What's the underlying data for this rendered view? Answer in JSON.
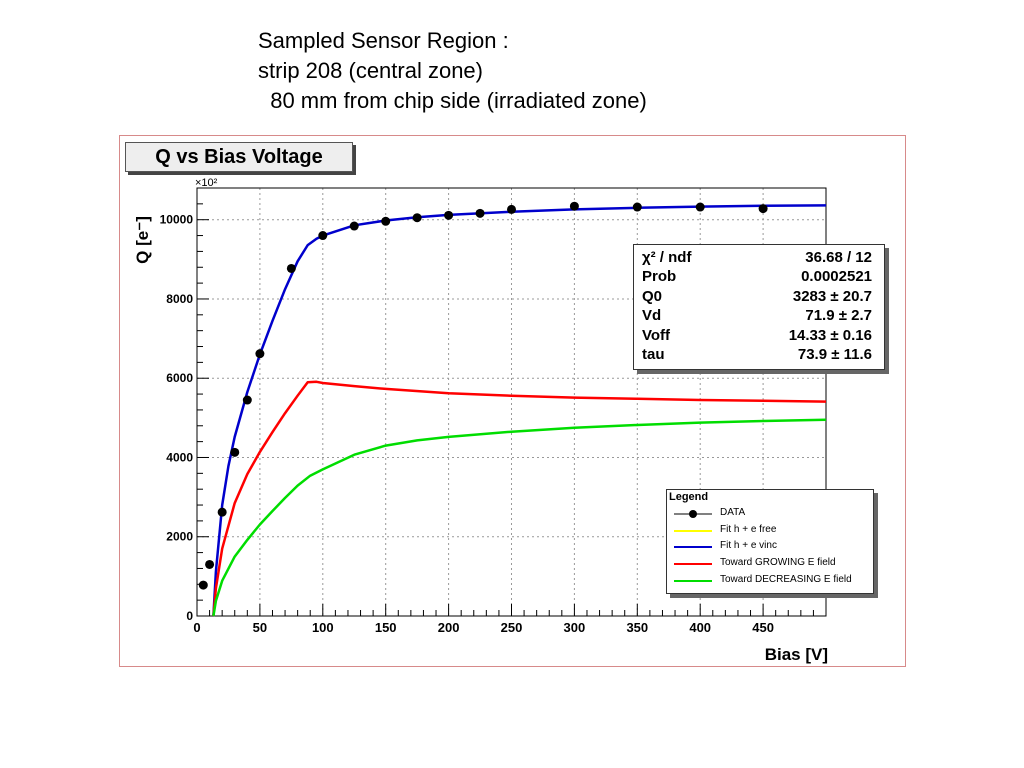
{
  "caption": {
    "line1": "Sampled Sensor Region :",
    "line2": "strip 208 (central zone)",
    "line3": "  80 mm from chip side (irradiated zone)"
  },
  "stats": [
    {
      "key": "χ² / ndf",
      "value": "36.68 / 12"
    },
    {
      "key": "Prob",
      "value": "0.0002521"
    },
    {
      "key": "Q0",
      "value": "3283 ± 20.7"
    },
    {
      "key": "Vd",
      "value": "71.9 ± 2.7"
    },
    {
      "key": "Voff",
      "value": "14.33 ± 0.16"
    },
    {
      "key": "tau",
      "value": "73.9 ± 11.6"
    }
  ],
  "legend": {
    "title": "Legend",
    "items": [
      {
        "label": "DATA",
        "color": "#000000"
      },
      {
        "label": "Fit h + e free",
        "color": "#ffff00"
      },
      {
        "label": "Fit h + e vinc",
        "color": "#0000cc"
      },
      {
        "label": "Toward GROWING E field",
        "color": "#ff0000"
      },
      {
        "label": "Toward DECREASING E field",
        "color": "#00dd00"
      }
    ]
  },
  "chart_data": {
    "type": "scatter",
    "title": "Q vs Bias Voltage",
    "xlabel": "Bias [V]",
    "ylabel": "Q [e⁻]",
    "y_multiplier": "×10²",
    "xlim": [
      0,
      500
    ],
    "ylim": [
      0,
      10800
    ],
    "x_ticks": [
      0,
      50,
      100,
      150,
      200,
      250,
      300,
      350,
      400,
      450
    ],
    "y_ticks": [
      0,
      2000,
      4000,
      6000,
      8000,
      10000
    ],
    "grid": true,
    "legend_position": "bottom-right",
    "series": [
      {
        "name": "DATA",
        "kind": "points",
        "color": "#000000",
        "x": [
          5,
          10,
          20,
          30,
          40,
          50,
          75,
          100,
          125,
          150,
          175,
          200,
          225,
          250,
          300,
          350,
          400,
          450
        ],
        "y": [
          780,
          1300,
          2620,
          4130,
          5450,
          6620,
          8770,
          9600,
          9840,
          9960,
          10050,
          10110,
          10160,
          10260,
          10340,
          10320,
          10320,
          10280
        ]
      },
      {
        "name": "Fit h + e vinc",
        "kind": "line",
        "color": "#0000cc",
        "x": [
          13,
          15,
          20,
          25,
          30,
          40,
          50,
          60,
          70,
          80,
          88,
          95,
          100,
          125,
          150,
          175,
          200,
          250,
          300,
          350,
          400,
          450,
          500
        ],
        "y": [
          0,
          1120,
          2800,
          3780,
          4520,
          5650,
          6600,
          7450,
          8250,
          8950,
          9360,
          9520,
          9600,
          9860,
          9980,
          10060,
          10120,
          10200,
          10260,
          10300,
          10330,
          10350,
          10360
        ]
      },
      {
        "name": "Toward GROWING E field",
        "kind": "line",
        "color": "#ff0000",
        "x": [
          13,
          15,
          20,
          30,
          40,
          50,
          60,
          70,
          80,
          88,
          95,
          100,
          125,
          150,
          200,
          250,
          300,
          350,
          400,
          450,
          500
        ],
        "y": [
          0,
          700,
          1700,
          2850,
          3580,
          4140,
          4640,
          5120,
          5560,
          5900,
          5910,
          5880,
          5800,
          5730,
          5620,
          5560,
          5510,
          5480,
          5450,
          5430,
          5410
        ]
      },
      {
        "name": "Toward DECREASING E field",
        "kind": "line",
        "color": "#00dd00",
        "x": [
          13,
          15,
          20,
          30,
          40,
          50,
          60,
          70,
          80,
          90,
          100,
          125,
          150,
          175,
          200,
          250,
          300,
          350,
          400,
          450,
          500
        ],
        "y": [
          0,
          380,
          890,
          1500,
          1920,
          2310,
          2650,
          2980,
          3290,
          3540,
          3700,
          4070,
          4300,
          4430,
          4520,
          4650,
          4750,
          4820,
          4880,
          4920,
          4950
        ]
      }
    ]
  }
}
